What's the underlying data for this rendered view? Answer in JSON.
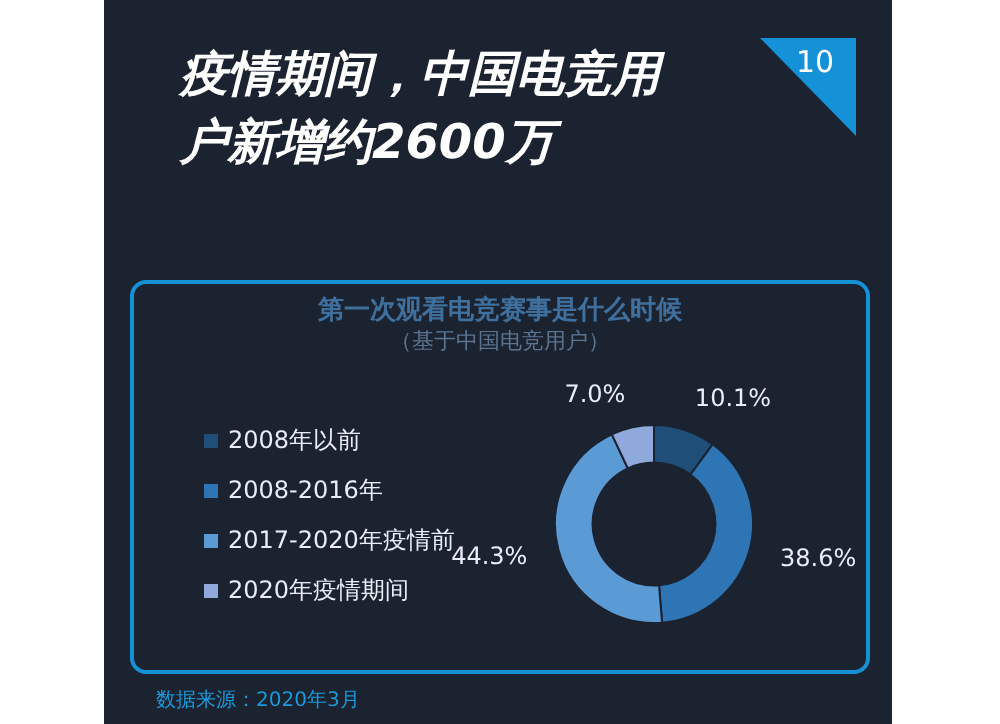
{
  "chart_data": {
    "type": "donut",
    "title": "疫情期间，中国电竞用户新增约2600万",
    "subtitle": "第一次观看电竞赛事是什么时候",
    "annotations": [
      "10",
      "（基于中国电竞用户）",
      "数据来源：2020年3月"
    ],
    "categories": [
      "2008年以前",
      "2008-2016年",
      "2017-2020年疫情前",
      "2020年疫情期间"
    ],
    "values": [
      10.1,
      38.6,
      44.3,
      7.0
    ],
    "colors": [
      "#1f4e79",
      "#2e75b6",
      "#5b9bd5",
      "#8fa9dc"
    ],
    "value_labels": [
      "10.1%",
      "38.6%",
      "44.3%",
      "7.0%"
    ],
    "legend": "left"
  }
}
